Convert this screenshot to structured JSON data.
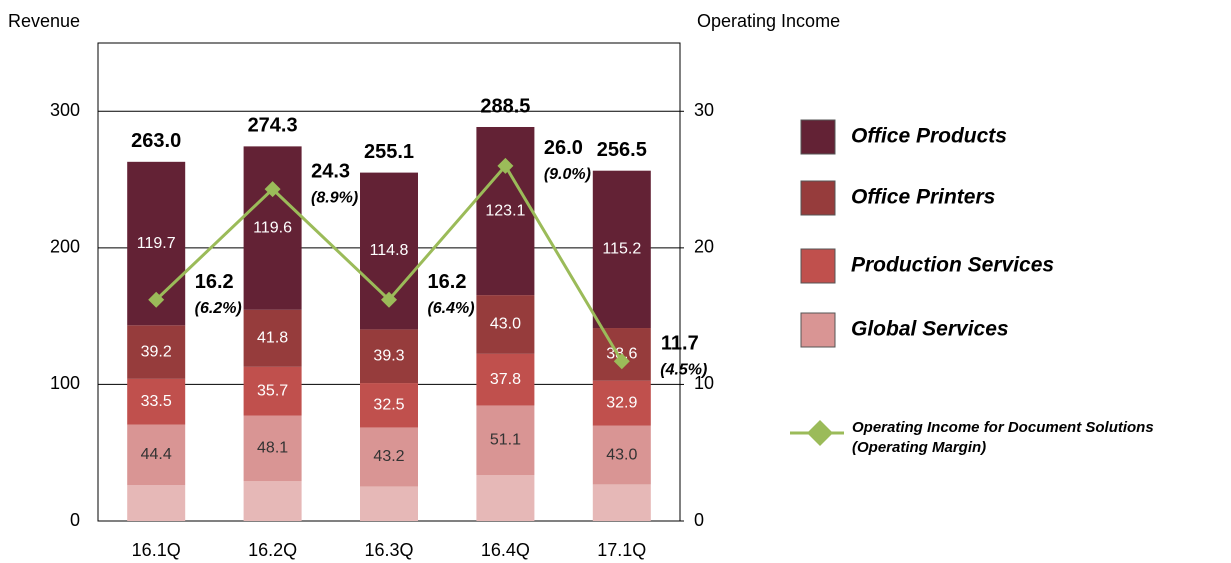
{
  "chart_data": {
    "type": "stacked_bar_line",
    "y_title": "Revenue",
    "y2_title": "Operating Income",
    "categories": [
      "16.1Q",
      "16.2Q",
      "16.3Q",
      "16.4Q",
      "17.1Q"
    ],
    "ylim": [
      0,
      350
    ],
    "yticks": [
      0,
      100,
      200,
      300
    ],
    "y2lim": [
      0,
      35
    ],
    "y2ticks": [
      0,
      10,
      20,
      30
    ],
    "grid": true,
    "series": [
      {
        "color": "#e6b8b7",
        "values": [
          26.2,
          29.1,
          25.3,
          33.5,
          26.8
        ]
      },
      {
        "name": "Global Services",
        "color": "#d99594",
        "values": [
          44.4,
          48.1,
          43.2,
          51.1,
          43.0
        ],
        "value_labels": [
          "44.4",
          "48.1",
          "43.2",
          "51.1",
          "43.0"
        ]
      },
      {
        "name": "Production Services",
        "color": "#c0504d",
        "values": [
          33.5,
          35.7,
          32.5,
          37.8,
          32.9
        ]
      },
      {
        "name": "Office Printers",
        "color": "#963c3c",
        "values": [
          39.2,
          41.8,
          39.3,
          43.0,
          38.6
        ],
        "value_labels": [
          "39.2",
          "41.8",
          "39.3",
          "43.0",
          "38.6"
        ]
      },
      {
        "name": "Office Products",
        "color": "#632235",
        "values": [
          119.7,
          119.6,
          114.8,
          123.1,
          115.2
        ]
      }
    ],
    "totals": [
      263.0,
      274.3,
      255.1,
      288.5,
      256.5
    ],
    "total_labels": [
      "263.0",
      "274.3",
      "255.1",
      "288.5",
      "256.5"
    ],
    "line": {
      "name": "Operating Income for Document Solutions",
      "note": "(Operating Margin)",
      "color": "#9bbb59",
      "axis": "y2",
      "values": [
        16.2,
        24.3,
        16.2,
        26.0,
        11.7
      ],
      "value_labels": [
        "16.2",
        "24.3",
        "16.2",
        "26.0",
        "11.7"
      ],
      "margin_labels": [
        "(6.2%)",
        "(8.9%)",
        "(6.4%)",
        "(9.0%)",
        "(4.5%)"
      ]
    }
  }
}
